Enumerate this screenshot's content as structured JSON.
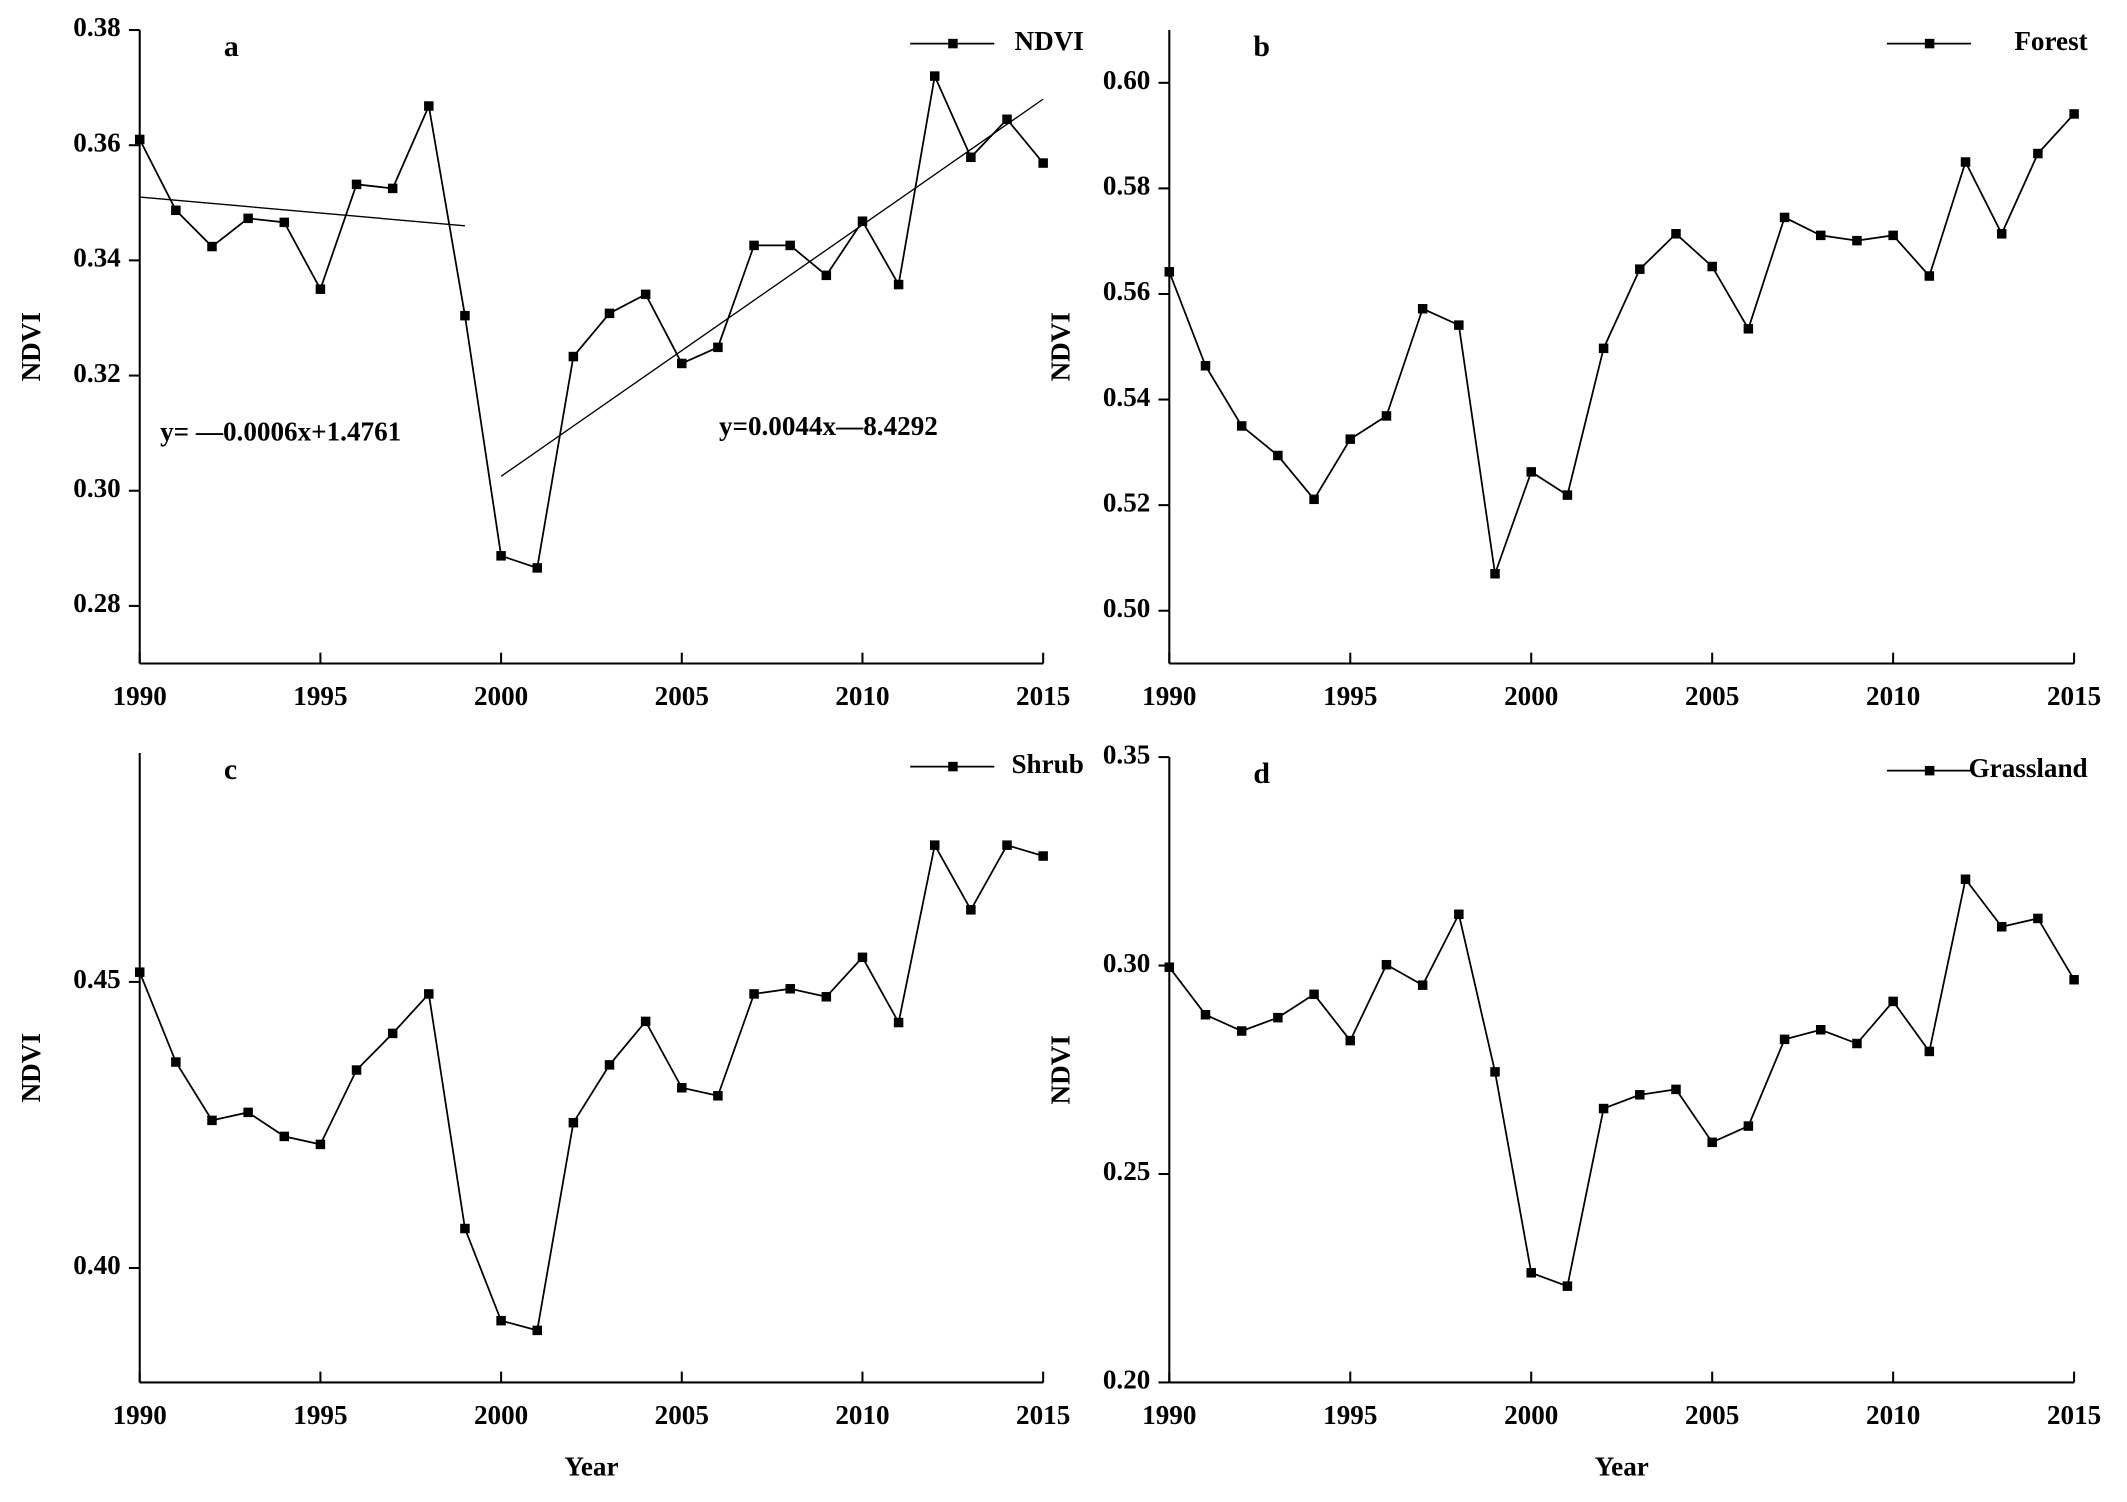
{
  "chart_data": [
    {
      "type": "line",
      "label": "a",
      "ylabel": "NDVI",
      "x": [
        1990,
        1991,
        1992,
        1993,
        1994,
        1995,
        1996,
        1997,
        1998,
        1999,
        2000,
        2001,
        2002,
        2003,
        2004,
        2005,
        2006,
        2007,
        2008,
        2009,
        2010,
        2011,
        2012,
        2013,
        2014,
        2015
      ],
      "series": [
        {
          "name": "NDVI",
          "color": "#000000",
          "values": [
            0.361,
            0.3487,
            0.3424,
            0.3473,
            0.3466,
            0.335,
            0.3532,
            0.3525,
            0.3668,
            0.3304,
            0.2887,
            0.2866,
            0.3233,
            0.3308,
            0.3341,
            0.3221,
            0.3249,
            0.3426,
            0.3426,
            0.3374,
            0.3468,
            0.3358,
            0.372,
            0.3579,
            0.3645,
            0.3569
          ]
        }
      ],
      "trendlines": [
        {
          "label": "y= —0.0006x+1.4761",
          "x": [
            1990,
            1999
          ],
          "values": [
            0.351,
            0.346
          ]
        },
        {
          "label": "y=0.0044x—8.4292",
          "x": [
            2000,
            2015
          ],
          "values": [
            0.3025,
            0.368
          ]
        }
      ],
      "xlim": [
        1990,
        2015
      ],
      "xticks": [
        1990,
        1995,
        2000,
        2005,
        2010,
        2015
      ],
      "ylim": [
        0.27,
        0.38
      ],
      "yticks": [
        0.28,
        {
          "value": 0.3,
          "label": "0.30"
        },
        0.32,
        0.34,
        0.36,
        0.38
      ]
    },
    {
      "type": "line",
      "label": "b",
      "ylabel": "NDVI",
      "x": [
        1990,
        1991,
        1992,
        1993,
        1994,
        1995,
        1996,
        1997,
        1998,
        1999,
        2000,
        2001,
        2002,
        2003,
        2004,
        2005,
        2006,
        2007,
        2008,
        2009,
        2010,
        2011,
        2012,
        2013,
        2014,
        2015
      ],
      "series": [
        {
          "name": "Forest",
          "color": "#000000",
          "values": [
            0.5642,
            0.5464,
            0.535,
            0.5294,
            0.5211,
            0.5325,
            0.5369,
            0.5572,
            0.5541,
            0.507,
            0.5263,
            0.5219,
            0.5497,
            0.5647,
            0.5714,
            0.5652,
            0.5534,
            0.5745,
            0.5711,
            0.5701,
            0.5711,
            0.5634,
            0.585,
            0.5714,
            0.5866,
            0.5941
          ]
        }
      ],
      "xlim": [
        1990,
        2015
      ],
      "xticks": [
        1990,
        1995,
        2000,
        2005,
        2010,
        2015
      ],
      "ylim": [
        0.49,
        0.61
      ],
      "yticks": [
        {
          "value": 0.5,
          "label": "0.50"
        },
        0.52,
        0.54,
        0.56,
        0.58,
        {
          "value": 0.6,
          "label": "0.60"
        }
      ]
    },
    {
      "type": "line",
      "label": "c",
      "ylabel": "NDVI",
      "xlabel": "Year",
      "x": [
        1990,
        1991,
        1992,
        1993,
        1994,
        1995,
        1996,
        1997,
        1998,
        1999,
        2000,
        2001,
        2002,
        2003,
        2004,
        2005,
        2006,
        2007,
        2008,
        2009,
        2010,
        2011,
        2012,
        2013,
        2014,
        2015
      ],
      "series": [
        {
          "name": "Shrub",
          "color": "#000000",
          "values": [
            0.4517,
            0.436,
            0.4258,
            0.4272,
            0.423,
            0.4216,
            0.4346,
            0.441,
            0.4479,
            0.4069,
            0.3908,
            0.3891,
            0.4254,
            0.4355,
            0.4431,
            0.4315,
            0.4301,
            0.4479,
            0.4488,
            0.4474,
            0.4543,
            0.4429,
            0.4739,
            0.4626,
            0.4739,
            0.472
          ]
        }
      ],
      "xlim": [
        1990,
        2015
      ],
      "xticks": [
        1990,
        1995,
        2000,
        2005,
        2010,
        2015
      ],
      "ylim": [
        0.38,
        0.49
      ],
      "yticks": [
        {
          "value": 0.4,
          "label": "0.40"
        },
        0.45
      ]
    },
    {
      "type": "line",
      "label": "d",
      "ylabel": "NDVI",
      "xlabel": "Year",
      "x": [
        1990,
        1991,
        1992,
        1993,
        1994,
        1995,
        1996,
        1997,
        1998,
        1999,
        2000,
        2001,
        2002,
        2003,
        2004,
        2005,
        2006,
        2007,
        2008,
        2009,
        2010,
        2011,
        2012,
        2013,
        2014,
        2015
      ],
      "series": [
        {
          "name": "Grassland",
          "color": "#000000",
          "values": [
            0.2996,
            0.2882,
            0.2843,
            0.2875,
            0.2931,
            0.282,
            0.3002,
            0.2953,
            0.3123,
            0.2745,
            0.2263,
            0.2231,
            0.2657,
            0.269,
            0.2703,
            0.2576,
            0.2615,
            0.2823,
            0.2846,
            0.2813,
            0.2914,
            0.2794,
            0.3207,
            0.3093,
            0.3113,
            0.2966
          ]
        }
      ],
      "xlim": [
        1990,
        2015
      ],
      "xticks": [
        1990,
        1995,
        2000,
        2005,
        2010,
        2015
      ],
      "ylim": [
        0.2,
        0.35
      ],
      "yticks": [
        {
          "value": 0.2,
          "label": "0.20"
        },
        0.25,
        {
          "value": 0.3,
          "label": "0.30"
        },
        0.35
      ]
    }
  ]
}
